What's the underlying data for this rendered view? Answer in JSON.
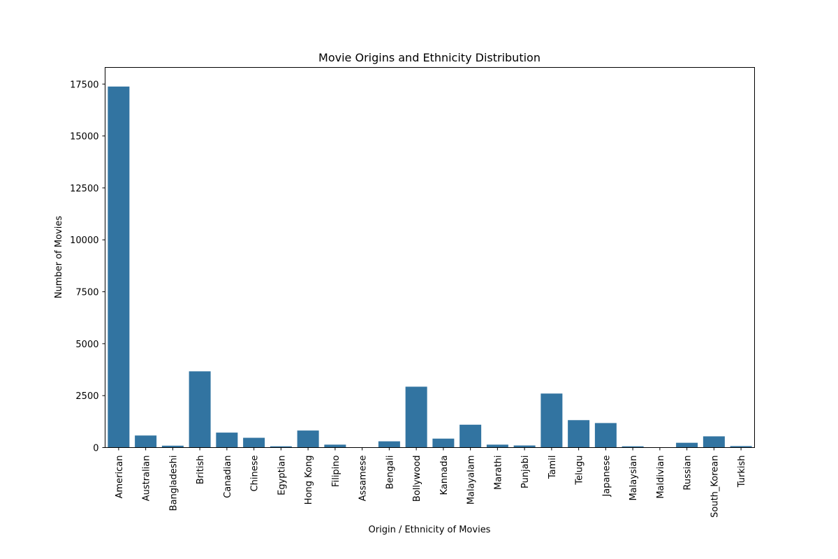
{
  "chart_data": {
    "type": "bar",
    "title": "Movie Origins and Ethnicity Distribution",
    "xlabel": "Origin / Ethnicity of Movies",
    "ylabel": "Number of Movies",
    "ylim": [
      0,
      18300
    ],
    "yticks": [
      0,
      2500,
      5000,
      7500,
      10000,
      12500,
      15000,
      17500
    ],
    "grid": false,
    "legend": "none",
    "bar_color": "#3274a1",
    "categories": [
      "American",
      "Australian",
      "Bangladeshi",
      "British",
      "Canadian",
      "Chinese",
      "Egyptian",
      "Hong Kong",
      "Filipino",
      "Assamese",
      "Bengali",
      "Bollywood",
      "Kannada",
      "Malayalam",
      "Marathi",
      "Punjabi",
      "Tamil",
      "Telugu",
      "Japanese",
      "Malaysian",
      "Maldivian",
      "Russian",
      "South_Korean",
      "Turkish"
    ],
    "values": [
      17380,
      580,
      90,
      3670,
      720,
      470,
      60,
      820,
      140,
      10,
      300,
      2930,
      430,
      1100,
      140,
      100,
      2600,
      1320,
      1180,
      60,
      5,
      230,
      540,
      70
    ]
  }
}
